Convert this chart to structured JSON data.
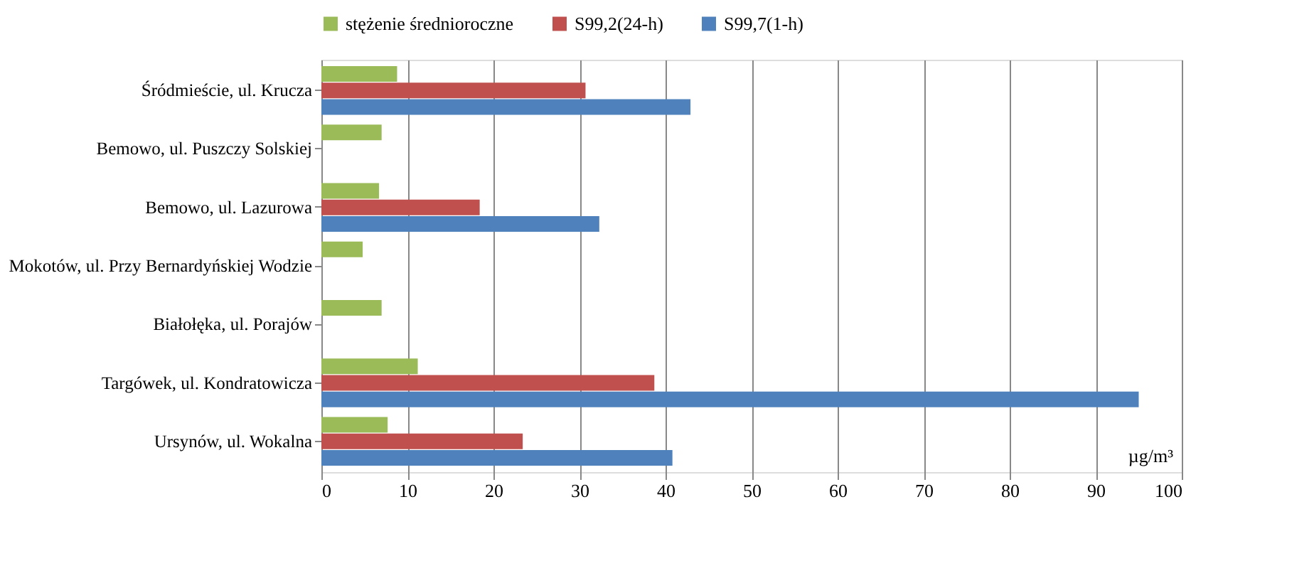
{
  "chart_data": {
    "type": "bar",
    "orientation": "horizontal",
    "categories": [
      "Śródmieście, ul. Krucza",
      "Bemowo, ul. Puszczy Solskiej",
      "Bemowo, ul. Lazurowa",
      "Mokotów, ul. Przy Bernardyńskiej Wodzie",
      "Białołęka, ul. Porajów",
      "Targówek, ul. Kondratowicza",
      "Ursynów, ul. Wokalna"
    ],
    "series": [
      {
        "name": "stężenie średnioroczne",
        "color": "#9bbb59",
        "values": [
          8.8,
          7,
          6.7,
          4.8,
          7,
          11.2,
          7.7
        ]
      },
      {
        "name": "S99,2(24-h)",
        "color": "#c0504d",
        "values": [
          30.7,
          null,
          18.4,
          null,
          null,
          38.7,
          23.4
        ]
      },
      {
        "name": "S99,7(1-h)",
        "color": "#4f81bd",
        "values": [
          42.9,
          null,
          32.3,
          null,
          null,
          95,
          40.8
        ]
      }
    ],
    "xlabel": "µg/m³",
    "xlim": [
      0,
      100
    ],
    "xticks": [
      0,
      10,
      20,
      30,
      40,
      50,
      60,
      70,
      80,
      90,
      100
    ],
    "grid": "x",
    "legend": "top"
  }
}
